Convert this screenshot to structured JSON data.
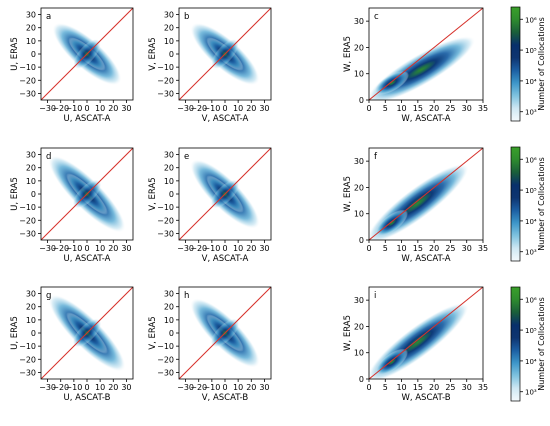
{
  "chart_data": [
    {
      "type": "heatmap",
      "panel": "a",
      "kind": "uv",
      "xlabel": "U, ASCAT-A",
      "ylabel": "U, ERA5",
      "xlim": [
        -35,
        35
      ],
      "ylim": [
        -35,
        35
      ],
      "xticks": [
        -30,
        -20,
        -10,
        0,
        10,
        20,
        30
      ],
      "yticks": [
        -30,
        -20,
        -10,
        0,
        10,
        20,
        30
      ],
      "identity_line": true,
      "density_extent": [
        [
          -25,
          25
        ],
        [
          -22,
          22
        ]
      ]
    },
    {
      "type": "heatmap",
      "panel": "b",
      "kind": "uv",
      "xlabel": "V, ASCAT-A",
      "ylabel": "V, ERA5",
      "xlim": [
        -35,
        35
      ],
      "ylim": [
        -35,
        35
      ],
      "xticks": [
        -30,
        -20,
        -10,
        0,
        10,
        20,
        30
      ],
      "yticks": [
        -30,
        -20,
        -10,
        0,
        10,
        20,
        30
      ],
      "identity_line": true,
      "density_extent": [
        [
          -25,
          25
        ],
        [
          -22,
          22
        ]
      ]
    },
    {
      "type": "heatmap",
      "panel": "c",
      "kind": "w",
      "xlabel": "W, ASCAT-A",
      "ylabel": "W, ERA5",
      "xlim": [
        0,
        35
      ],
      "ylim": [
        0,
        35
      ],
      "xticks": [
        0,
        5,
        10,
        15,
        20,
        25,
        30,
        35
      ],
      "yticks": [
        0,
        10,
        20,
        30
      ],
      "identity_line": true,
      "density_extent": [
        [
          0,
          32
        ],
        [
          0,
          23
        ]
      ]
    },
    {
      "type": "heatmap",
      "panel": "d",
      "kind": "uv",
      "xlabel": "U, ASCAT-A",
      "ylabel": "U, ERA5",
      "xlim": [
        -35,
        35
      ],
      "ylim": [
        -35,
        35
      ],
      "xticks": [
        -30,
        -20,
        -10,
        0,
        10,
        20,
        30
      ],
      "yticks": [
        -30,
        -20,
        -10,
        0,
        10,
        20,
        30
      ],
      "identity_line": true,
      "density_extent": [
        [
          -28,
          28
        ],
        [
          -28,
          28
        ]
      ]
    },
    {
      "type": "heatmap",
      "panel": "e",
      "kind": "uv",
      "xlabel": "V, ASCAT-A",
      "ylabel": "V, ERA5",
      "xlim": [
        -35,
        35
      ],
      "ylim": [
        -35,
        35
      ],
      "xticks": [
        -30,
        -20,
        -10,
        0,
        10,
        20,
        30
      ],
      "yticks": [
        -30,
        -20,
        -10,
        0,
        10,
        20,
        30
      ],
      "identity_line": true,
      "density_extent": [
        [
          -25,
          25
        ],
        [
          -25,
          25
        ]
      ]
    },
    {
      "type": "heatmap",
      "panel": "f",
      "kind": "w",
      "xlabel": "W, ASCAT-A",
      "ylabel": "W, ERA5",
      "xlim": [
        0,
        35
      ],
      "ylim": [
        0,
        35
      ],
      "xticks": [
        0,
        5,
        10,
        15,
        20,
        25,
        30,
        35
      ],
      "yticks": [
        0,
        10,
        20,
        30
      ],
      "identity_line": true,
      "density_extent": [
        [
          0,
          30
        ],
        [
          0,
          28
        ]
      ]
    },
    {
      "type": "heatmap",
      "panel": "g",
      "kind": "uv",
      "xlabel": "U, ASCAT-B",
      "ylabel": "U, ERA5",
      "xlim": [
        -35,
        35
      ],
      "ylim": [
        -35,
        35
      ],
      "xticks": [
        -30,
        -20,
        -10,
        0,
        10,
        20,
        30
      ],
      "yticks": [
        -30,
        -20,
        -10,
        0,
        10,
        20,
        30
      ],
      "identity_line": true,
      "density_extent": [
        [
          -28,
          28
        ],
        [
          -28,
          28
        ]
      ]
    },
    {
      "type": "heatmap",
      "panel": "h",
      "kind": "uv",
      "xlabel": "V, ASCAT-B",
      "ylabel": "V, ERA5",
      "xlim": [
        -35,
        35
      ],
      "ylim": [
        -35,
        35
      ],
      "xticks": [
        -30,
        -20,
        -10,
        0,
        10,
        20,
        30
      ],
      "yticks": [
        -30,
        -20,
        -10,
        0,
        10,
        20,
        30
      ],
      "identity_line": true,
      "density_extent": [
        [
          -25,
          25
        ],
        [
          -25,
          25
        ]
      ]
    },
    {
      "type": "heatmap",
      "panel": "i",
      "kind": "w",
      "xlabel": "W, ASCAT-B",
      "ylabel": "W, ERA5",
      "xlim": [
        0,
        35
      ],
      "ylim": [
        0,
        35
      ],
      "xticks": [
        0,
        5,
        10,
        15,
        20,
        25,
        30,
        35
      ],
      "yticks": [
        0,
        10,
        20,
        30
      ],
      "identity_line": true,
      "density_extent": [
        [
          0,
          30
        ],
        [
          0,
          28
        ]
      ]
    }
  ],
  "colorbar": {
    "label": "Number of Collocations",
    "scale": "log",
    "tick_labels": [
      "10^6",
      "10^5",
      "10^4",
      "10^3"
    ],
    "tick_values": [
      1000000,
      100000,
      10000,
      1000
    ],
    "colors": [
      "#f4fafd",
      "#cfe8f3",
      "#7fc3df",
      "#3d96c9",
      "#1c5fa3",
      "#0d3470",
      "#08306b",
      "#1a5e3a",
      "#2e8b2e",
      "#3aa02a"
    ]
  },
  "colors": {
    "identity_line": "#d6312b",
    "axis": "#000000"
  }
}
